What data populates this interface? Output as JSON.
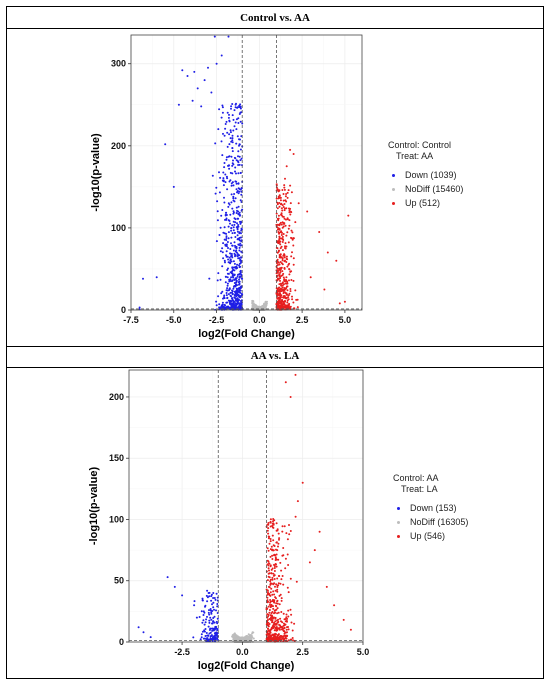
{
  "panels": [
    {
      "title": "Control vs. AA",
      "legend": {
        "control_line": "Control: Control",
        "treat_line": "Treat:    AA",
        "items": [
          {
            "label": "Down (1039)",
            "color": "#1f1fe6"
          },
          {
            "label": "NoDiff (15460)",
            "color": "#bdbdbd"
          },
          {
            "label": "Up (512)",
            "color": "#e61f1f"
          }
        ]
      }
    },
    {
      "title": "AA vs. LA",
      "legend": {
        "control_line": "Control: AA",
        "treat_line": "Treat:    LA",
        "items": [
          {
            "label": "Down (153)",
            "color": "#1f1fe6"
          },
          {
            "label": "NoDiff (16305)",
            "color": "#bdbdbd"
          },
          {
            "label": "Up (546)",
            "color": "#e61f1f"
          }
        ]
      }
    }
  ],
  "chart_data": [
    {
      "type": "scatter",
      "title": "Control vs. AA",
      "xlabel": "log2(Fold Change)",
      "ylabel": "-log10(p-value)",
      "xlim": [
        -7.5,
        6.0
      ],
      "ylim": [
        0,
        335
      ],
      "xticks": [
        -7.5,
        -5.0,
        -2.5,
        0.0,
        2.5,
        5.0
      ],
      "xtick_labels": [
        "-7.5",
        "-5.0",
        "-2.5",
        "0.0",
        "2.5",
        "5.0"
      ],
      "yticks": [
        0,
        100,
        200,
        300
      ],
      "ytick_labels": [
        "0",
        "100",
        "200",
        "300"
      ],
      "fc_threshold": [
        -1,
        1
      ],
      "grid": true,
      "series": [
        {
          "name": "Down (1039)",
          "color": "#1f1fe6",
          "count": 1039,
          "highlights": [
            [
              -4.5,
              292
            ],
            [
              -4.2,
              285
            ],
            [
              -3.8,
              290
            ],
            [
              -3.6,
              270
            ],
            [
              -3.2,
              280
            ],
            [
              -3.0,
              295
            ],
            [
              -2.8,
              265
            ],
            [
              -2.5,
              300
            ],
            [
              -3.9,
              255
            ],
            [
              -3.4,
              248
            ],
            [
              -4.7,
              250
            ],
            [
              -5.5,
              202
            ],
            [
              -5.0,
              150
            ],
            [
              -2.2,
              310
            ],
            [
              -1.8,
              333
            ],
            [
              -2.6,
              333
            ],
            [
              -7.0,
              3
            ],
            [
              -7.0,
              1
            ],
            [
              -6.8,
              38
            ],
            [
              -6.0,
              40
            ]
          ]
        },
        {
          "name": "NoDiff (15460)",
          "color": "#bdbdbd",
          "count": 15460,
          "highlights": []
        },
        {
          "name": "Up (512)",
          "color": "#e61f1f",
          "count": 512,
          "highlights": [
            [
              1.8,
              195
            ],
            [
              2.0,
              190
            ],
            [
              1.6,
              175
            ],
            [
              2.3,
              130
            ],
            [
              2.8,
              120
            ],
            [
              3.5,
              95
            ],
            [
              4.0,
              70
            ],
            [
              4.5,
              60
            ],
            [
              5.2,
              115
            ],
            [
              5.0,
              10
            ],
            [
              4.7,
              8
            ],
            [
              1.5,
              160
            ],
            [
              3.0,
              40
            ],
            [
              3.8,
              25
            ]
          ]
        }
      ]
    },
    {
      "type": "scatter",
      "title": "AA vs. LA",
      "xlabel": "log2(Fold Change)",
      "ylabel": "-log10(p-value)",
      "xlim": [
        -4.7,
        5.0
      ],
      "ylim": [
        0,
        222
      ],
      "xticks": [
        -2.5,
        0.0,
        2.5,
        5.0
      ],
      "xtick_labels": [
        "-2.5",
        "0.0",
        "2.5",
        "5.0"
      ],
      "yticks": [
        0,
        50,
        100,
        150,
        200
      ],
      "ytick_labels": [
        "0",
        "50",
        "100",
        "150",
        "200"
      ],
      "fc_threshold": [
        -1,
        1
      ],
      "grid": true,
      "series": [
        {
          "name": "Down (153)",
          "color": "#1f1fe6",
          "count": 153,
          "highlights": [
            [
              -3.1,
              53
            ],
            [
              -2.8,
              45
            ],
            [
              -2.5,
              38
            ],
            [
              -2.0,
              30
            ],
            [
              -1.6,
              25
            ],
            [
              -1.4,
              40
            ],
            [
              -4.3,
              12
            ],
            [
              -4.1,
              8
            ],
            [
              -3.8,
              4
            ]
          ]
        },
        {
          "name": "NoDiff (16305)",
          "color": "#bdbdbd",
          "count": 16305,
          "highlights": []
        },
        {
          "name": "Up (546)",
          "color": "#e61f1f",
          "count": 546,
          "highlights": [
            [
              2.2,
              218
            ],
            [
              1.8,
              212
            ],
            [
              2.0,
              200
            ],
            [
              2.5,
              130
            ],
            [
              2.3,
              115
            ],
            [
              3.2,
              90
            ],
            [
              3.0,
              75
            ],
            [
              2.8,
              65
            ],
            [
              3.8,
              30
            ],
            [
              4.5,
              10
            ],
            [
              4.2,
              18
            ],
            [
              3.5,
              45
            ]
          ]
        }
      ]
    }
  ]
}
